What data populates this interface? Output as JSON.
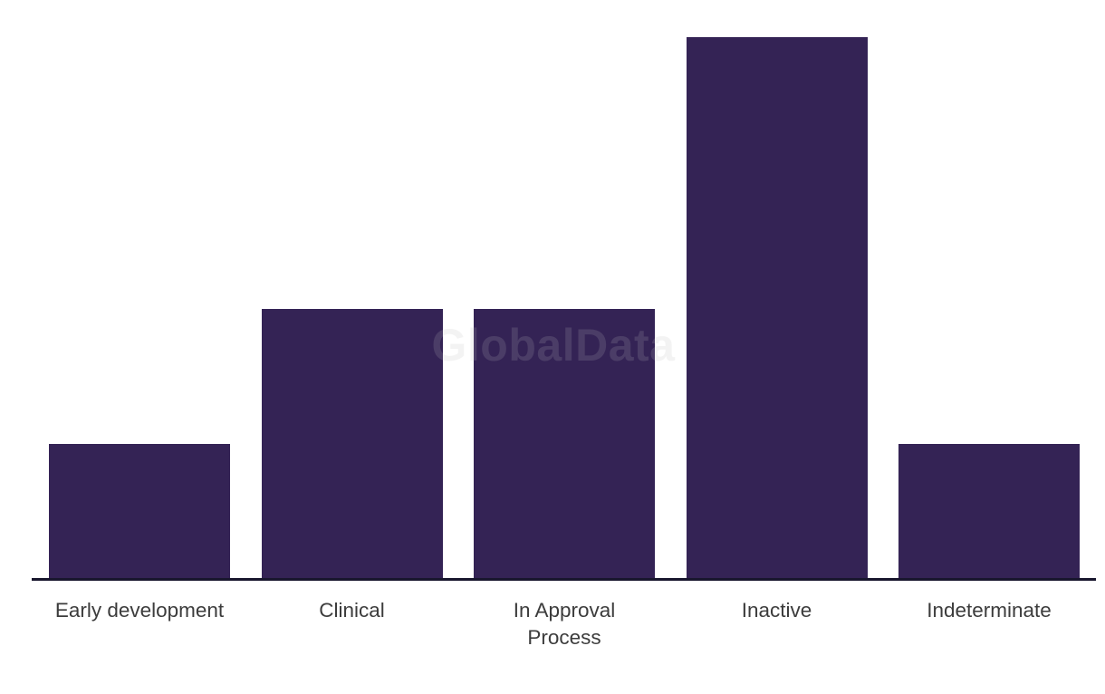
{
  "watermark": {
    "text": "GlobalData"
  },
  "chart_data": {
    "type": "bar",
    "categories": [
      "Early development",
      "Clinical",
      "In Approval\nProcess",
      "Inactive",
      "Indeterminate"
    ],
    "values": [
      25,
      50,
      50,
      100,
      25
    ],
    "title": "",
    "xlabel": "",
    "ylabel": "",
    "ylim": [
      0,
      100
    ],
    "grid": false,
    "legend": false,
    "colors": {
      "bar": "#342355",
      "axis_line": "#18162d",
      "tick_label": "#3c3c3c",
      "background": "#ffffff",
      "watermark": "#bebebe"
    }
  }
}
